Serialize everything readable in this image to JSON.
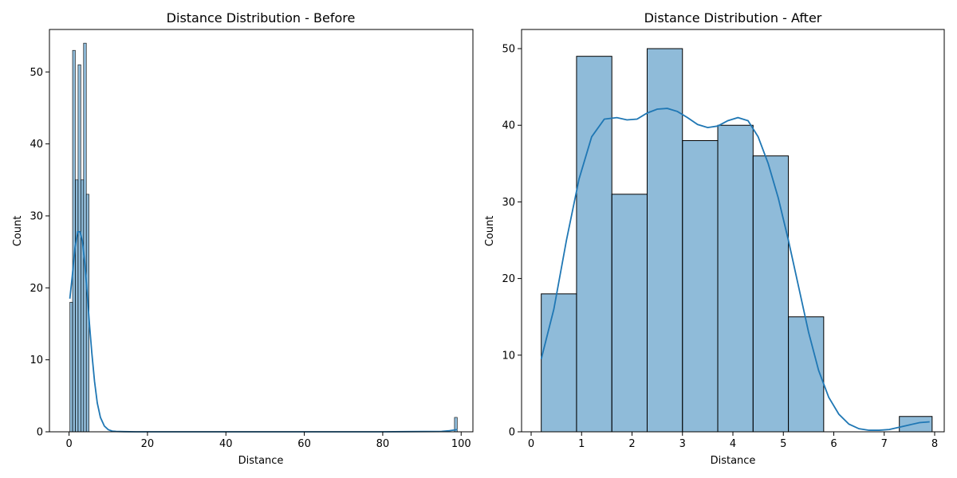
{
  "chart_data": [
    {
      "type": "bar",
      "title": "Distance Distribution - Before",
      "xlabel": "Distance",
      "ylabel": "Count",
      "xlim": [
        -5,
        103
      ],
      "ylim": [
        0,
        55.9
      ],
      "xticks": [
        0,
        20,
        40,
        60,
        80,
        100
      ],
      "yticks": [
        0,
        10,
        20,
        30,
        40,
        50
      ],
      "bins": [
        {
          "x0": 0.2,
          "x1": 0.9,
          "count": 18
        },
        {
          "x0": 0.9,
          "x1": 1.6,
          "count": 53
        },
        {
          "x0": 1.6,
          "x1": 2.3,
          "count": 35
        },
        {
          "x0": 2.3,
          "x1": 3.0,
          "count": 51
        },
        {
          "x0": 3.0,
          "x1": 3.7,
          "count": 35
        },
        {
          "x0": 3.7,
          "x1": 4.4,
          "count": 54
        },
        {
          "x0": 4.4,
          "x1": 5.1,
          "count": 33
        },
        {
          "x0": 98.3,
          "x1": 99.0,
          "count": 2
        }
      ],
      "kde": {
        "x": [
          0.2,
          0.8,
          1.5,
          2.2,
          2.8,
          3.4,
          4.0,
          4.6,
          5.2,
          5.8,
          6.5,
          7.2,
          8.0,
          9.0,
          10.0,
          11.0,
          12.0,
          14.0,
          17.0,
          20.0,
          40.0,
          60.0,
          80.0,
          95.0,
          97.0,
          99.0
        ],
        "y": [
          18.5,
          21.5,
          25.5,
          27.8,
          27.8,
          26.5,
          23.5,
          19.5,
          15.0,
          11.0,
          7.0,
          4.0,
          2.0,
          0.8,
          0.3,
          0.1,
          0.05,
          0.02,
          0.0,
          0.0,
          0.0,
          0.0,
          0.0,
          0.05,
          0.15,
          0.3
        ]
      },
      "grid": false,
      "legend": "none"
    },
    {
      "type": "bar",
      "title": "Distance Distribution - After",
      "xlabel": "Distance",
      "ylabel": "Count",
      "xlim": [
        -0.19,
        8.19
      ],
      "ylim": [
        0,
        52.5
      ],
      "xticks": [
        0,
        1,
        2,
        3,
        4,
        5,
        6,
        7,
        8
      ],
      "yticks": [
        0,
        10,
        20,
        30,
        40,
        50
      ],
      "bins": [
        {
          "x0": 0.2,
          "x1": 0.9,
          "count": 18
        },
        {
          "x0": 0.9,
          "x1": 1.6,
          "count": 49
        },
        {
          "x0": 1.6,
          "x1": 2.3,
          "count": 31
        },
        {
          "x0": 2.3,
          "x1": 3.0,
          "count": 50
        },
        {
          "x0": 3.0,
          "x1": 3.7,
          "count": 38
        },
        {
          "x0": 3.7,
          "x1": 4.4,
          "count": 40
        },
        {
          "x0": 4.4,
          "x1": 5.1,
          "count": 36
        },
        {
          "x0": 5.1,
          "x1": 5.8,
          "count": 15
        },
        {
          "x0": 7.3,
          "x1": 7.95,
          "count": 2
        }
      ],
      "kde": {
        "x": [
          0.2,
          0.45,
          0.7,
          0.95,
          1.2,
          1.45,
          1.7,
          1.9,
          2.1,
          2.3,
          2.5,
          2.7,
          2.9,
          3.1,
          3.3,
          3.5,
          3.7,
          3.9,
          4.1,
          4.3,
          4.5,
          4.7,
          4.9,
          5.1,
          5.3,
          5.5,
          5.7,
          5.9,
          6.1,
          6.3,
          6.5,
          6.7,
          6.9,
          7.1,
          7.3,
          7.5,
          7.7,
          7.9
        ],
        "y": [
          9.5,
          16.0,
          25.0,
          33.0,
          38.5,
          40.8,
          41.0,
          40.7,
          40.8,
          41.6,
          42.1,
          42.2,
          41.8,
          41.0,
          40.1,
          39.7,
          39.9,
          40.6,
          41.0,
          40.6,
          38.5,
          35.0,
          30.5,
          25.0,
          19.0,
          13.0,
          8.0,
          4.5,
          2.3,
          1.0,
          0.4,
          0.2,
          0.2,
          0.3,
          0.6,
          0.9,
          1.2,
          1.3
        ]
      },
      "grid": false,
      "legend": "none"
    }
  ]
}
